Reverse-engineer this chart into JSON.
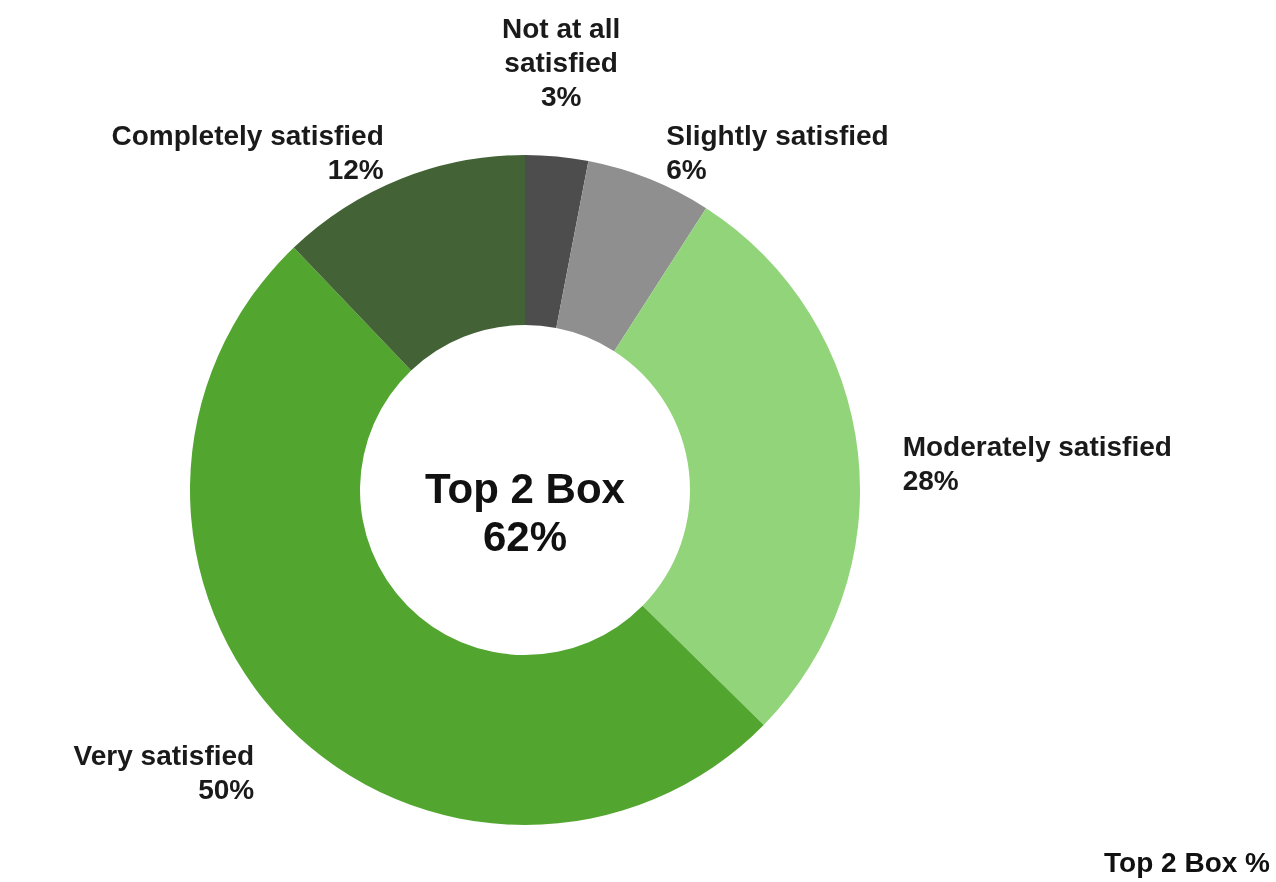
{
  "chart_data": {
    "type": "donut",
    "categories": [
      "Not at all satisfied",
      "Slightly satisfied",
      "Moderately satisfied",
      "Very satisfied",
      "Completely satisfied"
    ],
    "values": [
      3,
      6,
      28,
      50,
      12
    ],
    "colors": [
      "#4d4d4d",
      "#8f8f8f",
      "#92d479",
      "#52a62f",
      "#436235"
    ],
    "value_labels": [
      "3%",
      "6%",
      "28%",
      "50%",
      "12%"
    ],
    "annotations": [
      "Top 2 Box\n62%",
      "Top 2 Box %"
    ]
  }
}
